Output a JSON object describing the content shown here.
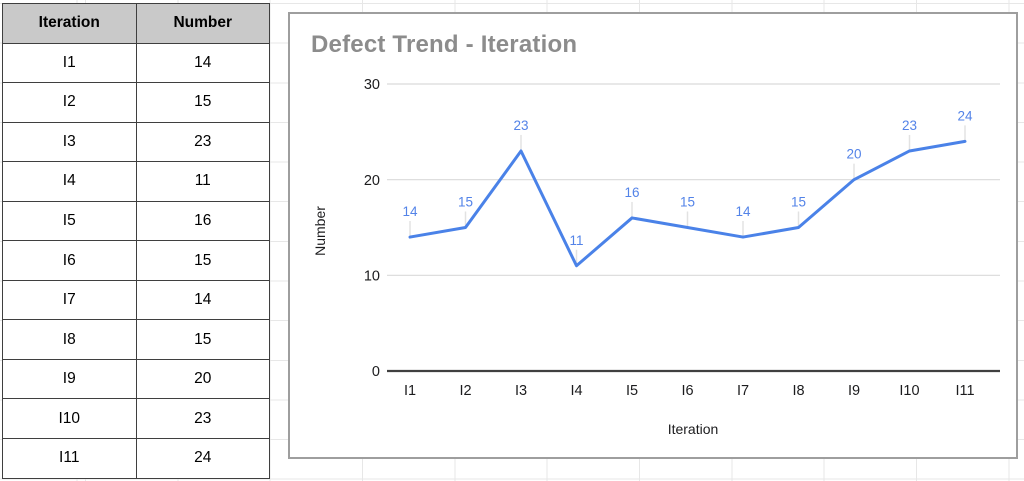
{
  "table": {
    "headers": [
      "Iteration",
      "Number"
    ],
    "rows": [
      [
        "I1",
        "14"
      ],
      [
        "I2",
        "15"
      ],
      [
        "I3",
        "23"
      ],
      [
        "I4",
        "11"
      ],
      [
        "I5",
        "16"
      ],
      [
        "I6",
        "15"
      ],
      [
        "I7",
        "14"
      ],
      [
        "I8",
        "15"
      ],
      [
        "I9",
        "20"
      ],
      [
        "I10",
        "23"
      ],
      [
        "I11",
        "24"
      ]
    ]
  },
  "chart_data": {
    "type": "line",
    "title": "Defect Trend - Iteration",
    "categories": [
      "I1",
      "I2",
      "I3",
      "I4",
      "I5",
      "I6",
      "I7",
      "I8",
      "I9",
      "I10",
      "I11"
    ],
    "values": [
      14,
      15,
      23,
      11,
      16,
      15,
      14,
      15,
      20,
      23,
      24
    ],
    "xlabel": "Iteration",
    "ylabel": "Number",
    "ylim": [
      0,
      30
    ],
    "yticks": [
      0,
      10,
      20,
      30
    ],
    "grid": true,
    "legend_position": "none",
    "data_labels": true,
    "colors": {
      "line": "#4a82e8",
      "data_label": "#5383e8",
      "title": "#8c8c8c",
      "axis_text": "#1c1c1e",
      "gridline": "#dadada",
      "axis_line": "#404040",
      "leader_line": "#e2e2e2",
      "table_header_bg": "#c9c9c9",
      "table_border": "#3f3f3f",
      "sheet_gridline": "#e7e7e7"
    }
  }
}
